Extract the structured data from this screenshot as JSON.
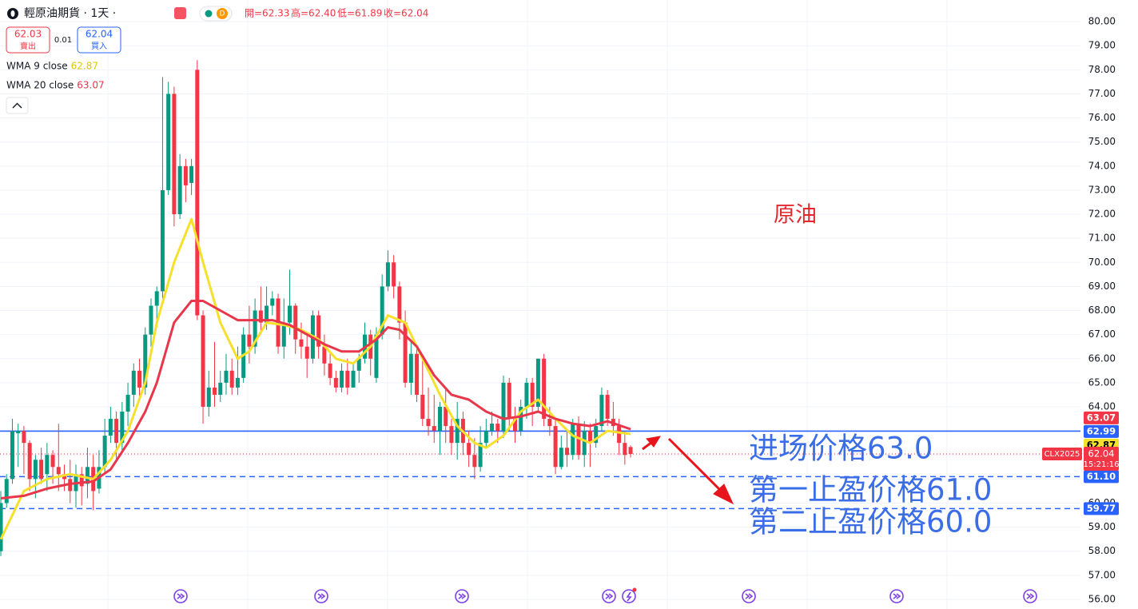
{
  "chart_data": {
    "type": "candlestick",
    "title": "輕原油期貨 · 1天 ·",
    "ohlc_header": [
      "開=62.33",
      "高=62.40",
      "低=61.89",
      "收=62.04"
    ],
    "sell": {
      "price": "62.03",
      "label": "賣出"
    },
    "spread": "0.01",
    "buy": {
      "price": "62.04",
      "label": "買入"
    },
    "up_color": "#089981",
    "down_color": "#f23645",
    "open": [
      58,
      60,
      61,
      62.9,
      63,
      62.5,
      61,
      61.8,
      61.2,
      62,
      61.5,
      61.2,
      61,
      60.5,
      61.2,
      60.8,
      61.5,
      60.6,
      61.5,
      62.8,
      63.5,
      62.5,
      63.8,
      64.5,
      65.5,
      64.8,
      67,
      68.2,
      68.8,
      73,
      77,
      72,
      74,
      73.3,
      78,
      67.8,
      64,
      64.8,
      64.5,
      65,
      65.5,
      64.8,
      65.2,
      67,
      66.5,
      68,
      67.5,
      68.2,
      68.5,
      66.5,
      67.5,
      68.2,
      66.8,
      66.5,
      66,
      67.8,
      66.5,
      65.8,
      65.2,
      64.8,
      65.5,
      64.8,
      65.5,
      66,
      67,
      65.2,
      67,
      69,
      70,
      69,
      67.5,
      65,
      66.2,
      64.5,
      63.5,
      63.2,
      63,
      64,
      63.2,
      62.5,
      63.5,
      62.5,
      62,
      61.5,
      62.5,
      63,
      63.3,
      63,
      65,
      63.5,
      63,
      64,
      65,
      64,
      66,
      63.5,
      63.2,
      61.5,
      62.3,
      62,
      63.3,
      62,
      63,
      62.5,
      63.2,
      64.5,
      63.5,
      63.2,
      62.5,
      62.33
    ],
    "high": [
      60.5,
      61.2,
      63.5,
      63.3,
      63.2,
      62.6,
      62,
      62.3,
      62.5,
      62.2,
      63.3,
      61.6,
      61.8,
      61.6,
      61.5,
      62.3,
      62,
      62.2,
      63.5,
      64,
      63.8,
      64.2,
      65,
      65.8,
      66,
      67.3,
      68.5,
      69,
      77.7,
      77.5,
      77.3,
      74.5,
      74.3,
      74.3,
      78.4,
      68,
      65.5,
      66.7,
      65.5,
      66.2,
      66,
      66.5,
      67.3,
      68.2,
      68.5,
      69,
      69,
      68.8,
      68.7,
      68.5,
      69.7,
      68.3,
      67.5,
      67,
      68,
      68,
      67,
      66.2,
      65.5,
      65.8,
      66,
      65.8,
      66.2,
      67.5,
      67.2,
      67.3,
      69.5,
      70.5,
      70.3,
      69.2,
      68,
      66.8,
      66.5,
      66,
      64.8,
      64.5,
      64.2,
      64.8,
      63.5,
      64.2,
      63.8,
      63,
      62.7,
      63.2,
      63.5,
      63.8,
      63.5,
      65.3,
      65.2,
      64,
      64.3,
      65.2,
      65.2,
      66,
      66.2,
      64,
      63.5,
      62.8,
      63,
      63.5,
      63.6,
      63.4,
      63.3,
      63.5,
      64.8,
      64.7,
      64.2,
      63.5,
      63,
      62.4
    ],
    "low": [
      57.8,
      59.8,
      60.8,
      61.5,
      61.2,
      60.5,
      60.2,
      60.8,
      60.5,
      60.8,
      60.5,
      60.5,
      60,
      59.8,
      59.9,
      60.2,
      59.7,
      60.4,
      61.2,
      62.5,
      61.8,
      62.2,
      63.2,
      64,
      64.3,
      64.5,
      66.5,
      67.5,
      68.5,
      72.8,
      71.5,
      71.8,
      72.5,
      72.8,
      67.6,
      63.3,
      63.6,
      64,
      64.2,
      64.5,
      64.5,
      64.5,
      65,
      65.8,
      66.2,
      67,
      67.2,
      67.8,
      66.2,
      66,
      67,
      66.2,
      66,
      65.2,
      65.8,
      66,
      65.3,
      64.9,
      64.6,
      64.6,
      64.5,
      64.8,
      65,
      65.8,
      65.3,
      65,
      66.8,
      68.8,
      68.5,
      66.8,
      64.8,
      64.5,
      64.2,
      63.2,
      62.8,
      62.5,
      62,
      62.5,
      62,
      61.8,
      62,
      61.5,
      61,
      61.3,
      62.3,
      62.8,
      62.5,
      62.7,
      63,
      62.5,
      62.8,
      63.5,
      63.2,
      63.8,
      63.2,
      62.8,
      61.2,
      61.4,
      61.5,
      61.8,
      61.8,
      61.5,
      61.5,
      62.3,
      63,
      63.2,
      62.8,
      62,
      61.6,
      61.89
    ],
    "close": [
      60,
      61,
      63,
      63,
      62.5,
      61,
      61.8,
      61,
      62,
      61.5,
      61.2,
      61,
      60.5,
      61.2,
      60.7,
      61.5,
      60.5,
      61.5,
      62.8,
      63.5,
      62.5,
      63.8,
      64.5,
      65.5,
      64.8,
      67,
      68.2,
      68.8,
      73,
      77,
      72,
      74,
      73.2,
      74,
      67.8,
      64,
      64.8,
      64.5,
      65,
      65.5,
      64.8,
      65.2,
      67,
      66.5,
      68,
      67.5,
      68.2,
      68.5,
      66.5,
      67.5,
      68.2,
      66.8,
      66.5,
      66,
      67.8,
      66.5,
      65.8,
      65.2,
      64.8,
      65.5,
      64.8,
      65.5,
      66,
      67,
      66,
      67,
      69,
      70,
      69,
      67.5,
      65,
      66.2,
      64.5,
      63.5,
      63.2,
      63,
      64,
      63.2,
      62.5,
      63.5,
      62.5,
      62,
      61.5,
      62.5,
      63,
      63.3,
      63,
      65,
      63.5,
      63,
      64,
      65,
      64,
      66,
      63.5,
      63.2,
      61.5,
      62.3,
      62,
      63.3,
      62,
      63,
      62.5,
      63.2,
      64.5,
      63.5,
      63.2,
      62.5,
      62,
      62.04
    ],
    "series": [
      {
        "name": "WMA 9 close",
        "legend_value": "62.87",
        "color": "#f5e12c",
        "x": [
          0,
          4,
          8,
          12,
          16,
          19,
          22,
          25,
          27,
          30,
          33,
          35,
          38,
          41,
          43,
          46,
          49,
          52,
          55,
          58,
          61,
          64,
          67,
          70,
          73,
          76,
          79,
          82,
          84,
          87,
          90,
          93,
          96,
          99,
          102,
          105,
          108,
          109
        ],
        "values": [
          58.5,
          60.5,
          61,
          61.2,
          61,
          61.8,
          63,
          65,
          67.5,
          70,
          71.8,
          70,
          67.5,
          66,
          66.3,
          67.5,
          67.4,
          67.2,
          66.8,
          66,
          65.8,
          66.5,
          67.8,
          67.5,
          66,
          64.5,
          63.2,
          62.5,
          62.3,
          62.8,
          63.8,
          64.3,
          63.5,
          62.8,
          62.5,
          63,
          62.9,
          62.87
        ]
      },
      {
        "name": "WMA 20 close",
        "legend_value": "63.07",
        "color": "#e8364a",
        "x": [
          0,
          4,
          8,
          12,
          16,
          19,
          22,
          25,
          27,
          30,
          33,
          35,
          38,
          41,
          44,
          47,
          50,
          53,
          56,
          59,
          62,
          65,
          67,
          69,
          72,
          75,
          78,
          81,
          84,
          87,
          90,
          93,
          96,
          99,
          102,
          105,
          109
        ],
        "values": [
          60.2,
          60.3,
          60.6,
          60.8,
          60.9,
          61.4,
          62.5,
          63.8,
          65,
          67.5,
          68.4,
          68.4,
          68,
          67.6,
          67.6,
          67.6,
          67.4,
          67,
          66.6,
          66.3,
          66.3,
          66.8,
          67.3,
          67.2,
          66.5,
          65.3,
          64.5,
          64.3,
          63.8,
          63.5,
          63.6,
          63.8,
          63.5,
          63.3,
          63.2,
          63.4,
          63.07
        ]
      }
    ],
    "hlines": [
      {
        "value": 62.99,
        "color": "#2962ff",
        "dashed": false
      },
      {
        "value": 61.1,
        "color": "#2962ff",
        "dashed": true
      },
      {
        "value": 59.77,
        "color": "#2962ff",
        "dashed": true
      }
    ],
    "price_labels": [
      {
        "value": 63.07,
        "label": "63.07",
        "color": "#f23645",
        "text_color": "#ffffff"
      },
      {
        "value": 62.99,
        "label": "62.99",
        "color": "#2962ff",
        "text_color": "#ffffff"
      },
      {
        "value": 62.87,
        "label": "62.87",
        "color": "#f5e12c",
        "text_color": "#000000"
      },
      {
        "value": 61.1,
        "label": "61.10",
        "color": "#2962ff",
        "text_color": "#ffffff"
      },
      {
        "value": 59.77,
        "label": "59.77",
        "color": "#2962ff",
        "text_color": "#ffffff"
      }
    ],
    "last_price": {
      "value": 62.04,
      "label": "62.04",
      "symbol": "CLX2025",
      "countdown": "15:21:16",
      "color": "#f23645"
    },
    "annotations": [
      {
        "text": "原油",
        "color": "#e0282e"
      },
      {
        "text": "进场价格63.0",
        "color": "#3a6de6"
      },
      {
        "text": "第一止盈价格61.0",
        "color": "#3a6de6"
      },
      {
        "text": "第二止盈价格60.0",
        "color": "#3a6de6"
      }
    ],
    "ylim": [
      55.6,
      80.9
    ],
    "yticks": [
      {
        "value": 56,
        "label": "56.00"
      },
      {
        "value": 57,
        "label": "57.00"
      },
      {
        "value": 58,
        "label": "58.00"
      },
      {
        "value": 59,
        "label": "59.00"
      },
      {
        "value": 60,
        "label": "60.00"
      },
      {
        "value": 61,
        "label": "61.00"
      },
      {
        "value": 62,
        "label": "62.00"
      },
      {
        "value": 63,
        "label": "63.00"
      },
      {
        "value": 64,
        "label": "64.00"
      },
      {
        "value": 65,
        "label": "65.00"
      },
      {
        "value": 66,
        "label": "66.00"
      },
      {
        "value": 67,
        "label": "67.00"
      },
      {
        "value": 68,
        "label": "68.00"
      },
      {
        "value": 69,
        "label": "69.00"
      },
      {
        "value": 70,
        "label": "70.00"
      },
      {
        "value": 71,
        "label": "71.00"
      },
      {
        "value": 72,
        "label": "72.00"
      },
      {
        "value": 73,
        "label": "73.00"
      },
      {
        "value": 74,
        "label": "74.00"
      },
      {
        "value": 75,
        "label": "75.00"
      },
      {
        "value": 76,
        "label": "76.00"
      },
      {
        "value": 77,
        "label": "77.00"
      },
      {
        "value": 78,
        "label": "78.00"
      },
      {
        "value": 79,
        "label": "79.00"
      },
      {
        "value": 80,
        "label": "80.00"
      }
    ],
    "grid": true
  }
}
